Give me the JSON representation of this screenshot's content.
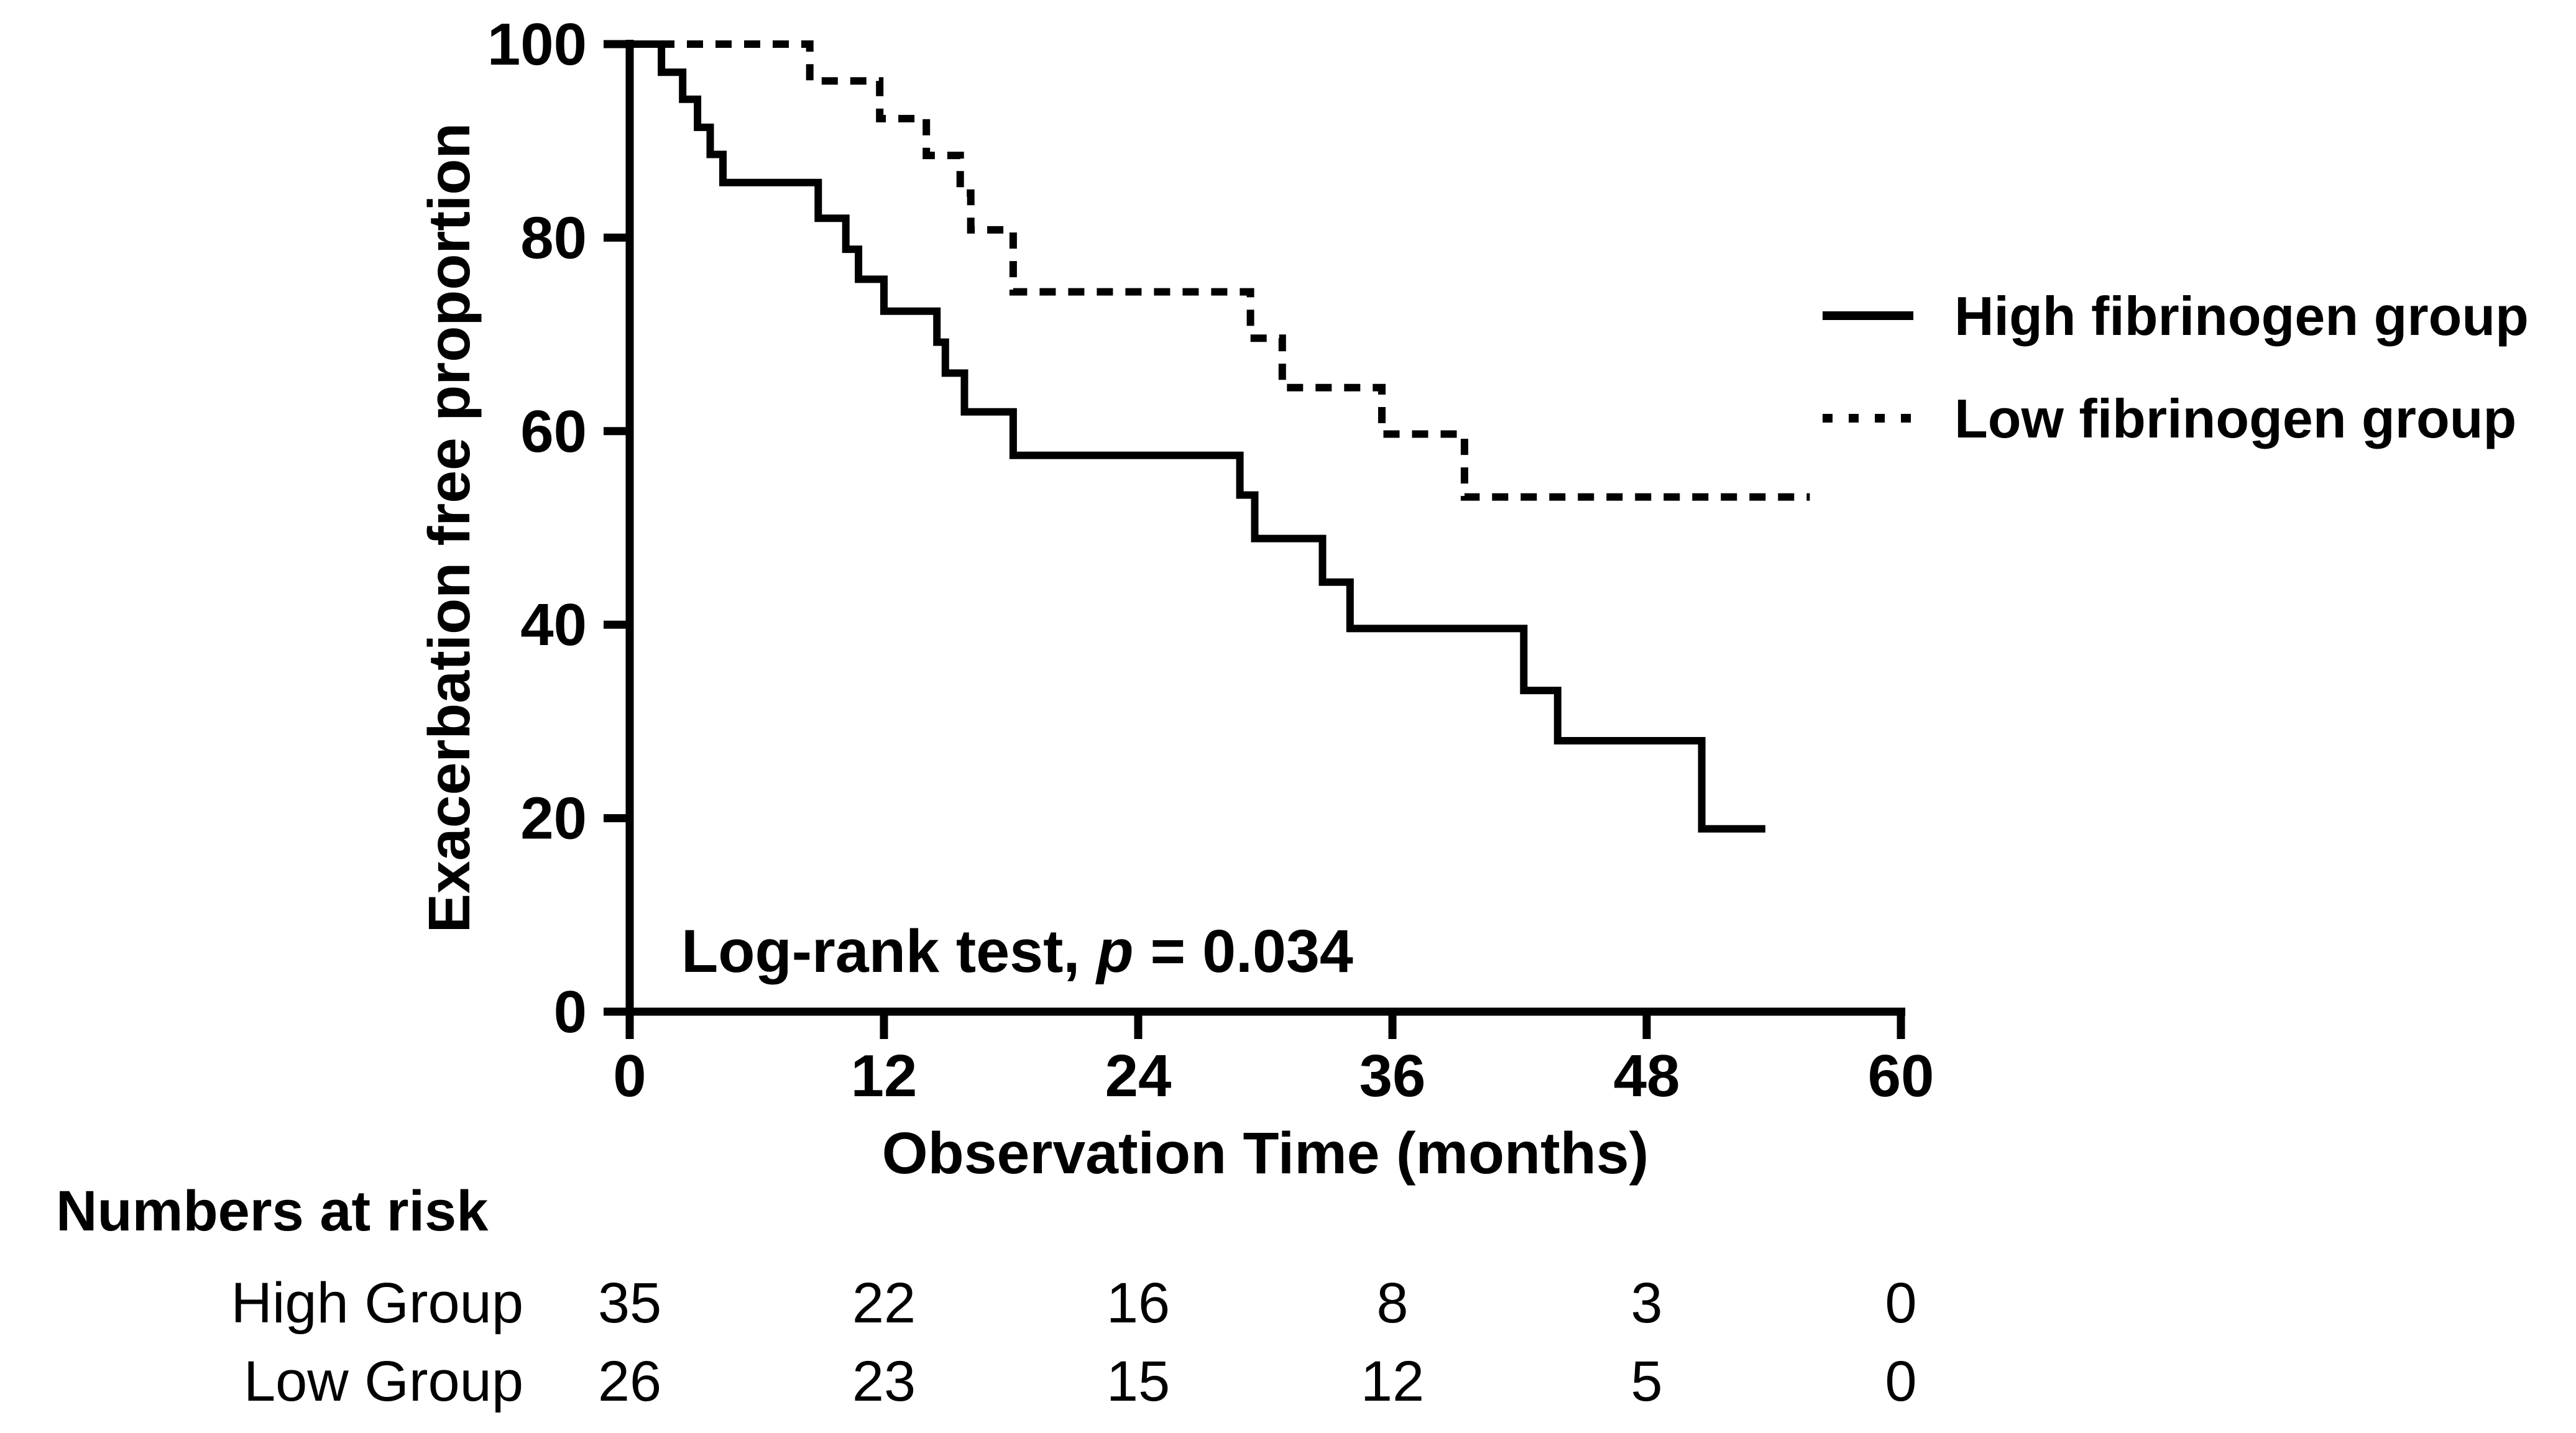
{
  "figure": {
    "background_color": "#ffffff",
    "ink_color": "#000000"
  },
  "chart_data": {
    "type": "line",
    "subtype": "kaplan-meier-step",
    "title": "",
    "xlabel": "Observation Time (months)",
    "ylabel": "Exacerbation free proportion",
    "xlim": [
      0,
      60
    ],
    "ylim": [
      0,
      100
    ],
    "xticks": [
      0,
      12,
      24,
      36,
      48,
      60
    ],
    "yticks": [
      0,
      20,
      40,
      60,
      80,
      100
    ],
    "grid": false,
    "legend_position": "outside-right-top",
    "annotation": {
      "prefix": "Log-rank test, ",
      "italic_symbol": "p",
      "suffix": " = 0.034"
    },
    "series": [
      {
        "name": "High fibrinogen group",
        "line_style": "solid",
        "color": "#000000",
        "points": [
          [
            0,
            100
          ],
          [
            1.5,
            97.1
          ],
          [
            2.5,
            94.3
          ],
          [
            3.2,
            91.4
          ],
          [
            3.8,
            88.6
          ],
          [
            4.4,
            85.7
          ],
          [
            8.9,
            82.0
          ],
          [
            10.2,
            78.8
          ],
          [
            10.8,
            75.7
          ],
          [
            12.0,
            72.4
          ],
          [
            14.5,
            69.2
          ],
          [
            14.9,
            66.0
          ],
          [
            15.8,
            62.0
          ],
          [
            18.1,
            57.5
          ],
          [
            28.8,
            53.4
          ],
          [
            29.5,
            48.9
          ],
          [
            32.7,
            44.4
          ],
          [
            34.0,
            39.6
          ],
          [
            42.2,
            33.2
          ],
          [
            43.8,
            28.0
          ],
          [
            50.6,
            18.9
          ],
          [
            53.6,
            18.9
          ]
        ]
      },
      {
        "name": "Low fibrinogen group",
        "line_style": "dashed",
        "color": "#000000",
        "points": [
          [
            0,
            100
          ],
          [
            8.5,
            96.2
          ],
          [
            11.8,
            92.3
          ],
          [
            14.0,
            88.5
          ],
          [
            15.6,
            84.6
          ],
          [
            16.1,
            80.8
          ],
          [
            18.1,
            74.4
          ],
          [
            29.3,
            69.6
          ],
          [
            30.8,
            64.5
          ],
          [
            35.5,
            59.7
          ],
          [
            39.4,
            53.2
          ],
          [
            55.7,
            53.2
          ]
        ]
      }
    ],
    "numbers_at_risk": {
      "title": "Numbers at risk",
      "times": [
        0,
        12,
        24,
        36,
        48,
        60
      ],
      "rows": [
        {
          "label": "High Group",
          "counts": [
            35,
            22,
            16,
            8,
            3,
            0
          ]
        },
        {
          "label": "Low Group",
          "counts": [
            26,
            23,
            15,
            12,
            5,
            0
          ]
        }
      ]
    }
  }
}
